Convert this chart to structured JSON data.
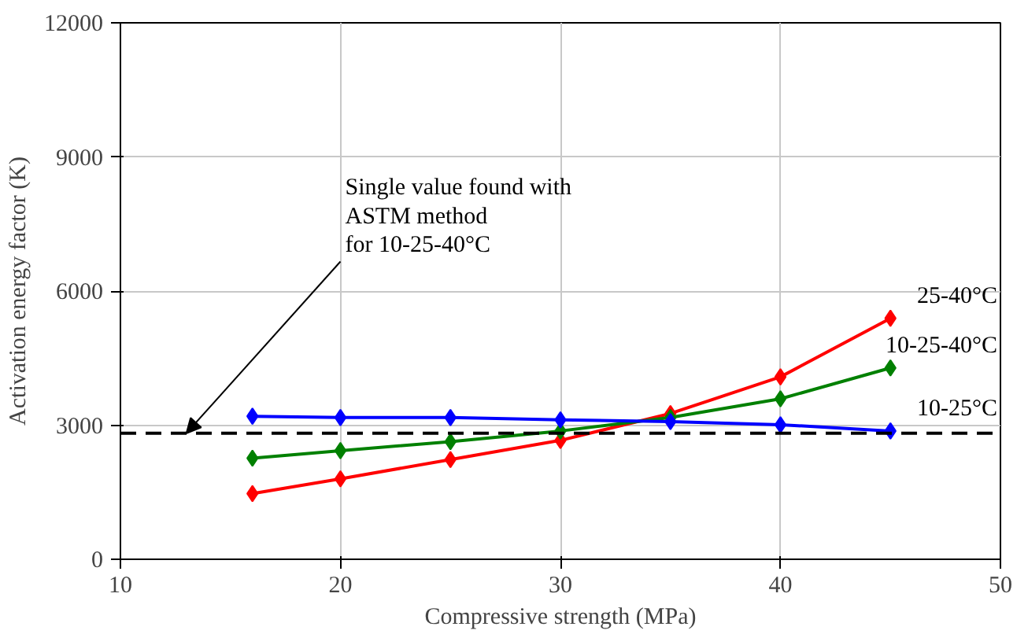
{
  "chart_data": {
    "type": "line",
    "xlabel": "Compressive strength (MPa)",
    "ylabel": "Activation energy factor (K)",
    "xlim": [
      10,
      50
    ],
    "ylim": [
      0,
      12000
    ],
    "xticks": [
      10,
      20,
      30,
      40,
      50
    ],
    "yticks": [
      0,
      3000,
      6000,
      9000,
      12000
    ],
    "grid": true,
    "marker": "diamond",
    "line_style": "solid",
    "x": [
      16,
      20,
      25,
      30,
      35,
      40,
      45
    ],
    "series": [
      {
        "name": "25-40°C",
        "color": "#ff0000",
        "values": [
          1470,
          1800,
          2230,
          2660,
          3260,
          4080,
          5390
        ]
      },
      {
        "name": "10-25-40°C",
        "color": "#008000",
        "values": [
          2260,
          2430,
          2630,
          2870,
          3170,
          3590,
          4280
        ]
      },
      {
        "name": "10-25°C",
        "color": "#0000ff",
        "values": [
          3200,
          3170,
          3170,
          3120,
          3080,
          3010,
          2870
        ]
      }
    ],
    "ref_lines": [
      {
        "axis": "y",
        "value": 2820,
        "color": "#000000",
        "line_style": "dashed"
      }
    ],
    "annotations": [
      {
        "text": "Single value found with\nASTM method\nfor 10-25-40°C",
        "x": 13,
        "y": 2820
      }
    ]
  }
}
